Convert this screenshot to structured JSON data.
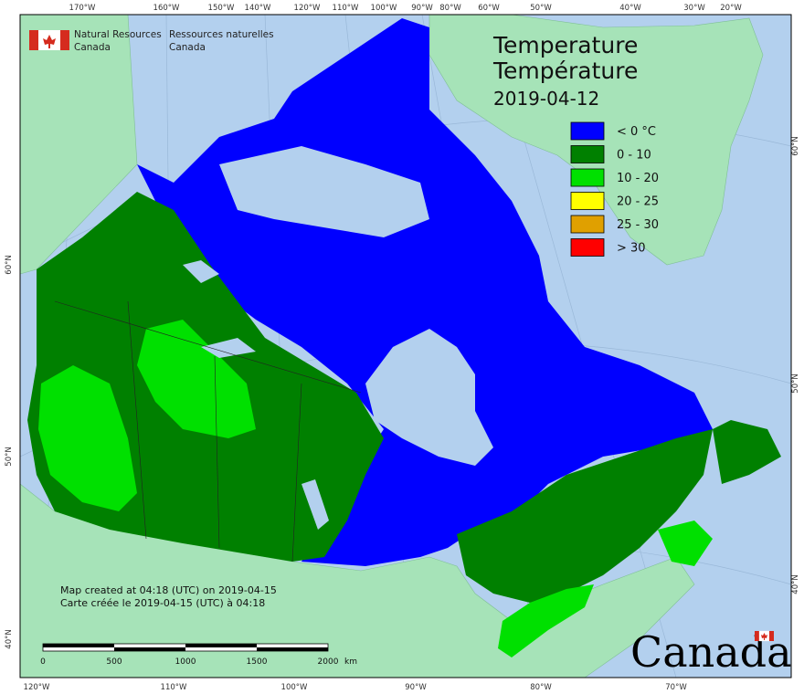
{
  "map": {
    "title_en": "Temperature",
    "title_fr": "Température",
    "date": "2019-04-12",
    "agency": {
      "en_line1": "Natural Resources",
      "en_line2": "Canada",
      "fr_line1": "Ressources naturelles",
      "fr_line2": "Canada"
    },
    "legend": [
      {
        "label": "< 0 °C",
        "color": "#0000ff"
      },
      {
        "label": "0 - 10",
        "color": "#008000"
      },
      {
        "label": "10 - 20",
        "color": "#00e000"
      },
      {
        "label": "20 - 25",
        "color": "#ffff00"
      },
      {
        "label": "25 - 30",
        "color": "#e0a000"
      },
      {
        "label": "> 30",
        "color": "#ff0000"
      }
    ],
    "credit": {
      "en": "Map created at 04:18 (UTC) on 2019-04-15",
      "fr": "Carte créée le 2019-04-15 (UTC) à 04:18"
    },
    "scale": {
      "labels": [
        "0",
        "500",
        "1000",
        "1500",
        "2000"
      ],
      "unit": "km"
    },
    "wordmark": "Canada",
    "top_ticks": [
      "170°W",
      "160°W",
      "150°W",
      "140°W",
      "120°W",
      "110°W",
      "100°W",
      "90°W",
      "80°W",
      "60°W",
      "50°W",
      "40°W",
      "30°W",
      "20°W"
    ],
    "bottom_ticks": [
      "120°W",
      "110°W",
      "100°W",
      "90°W",
      "80°W",
      "70°W"
    ],
    "left_ticks": [
      "60°N",
      "50°N",
      "40°N"
    ],
    "right_ticks": [
      "60°N",
      "50°N",
      "40°N"
    ],
    "colors": {
      "ocean": "#b3d0ee",
      "land_other": "#a6e3b8",
      "water": "#b3d0ee"
    }
  }
}
